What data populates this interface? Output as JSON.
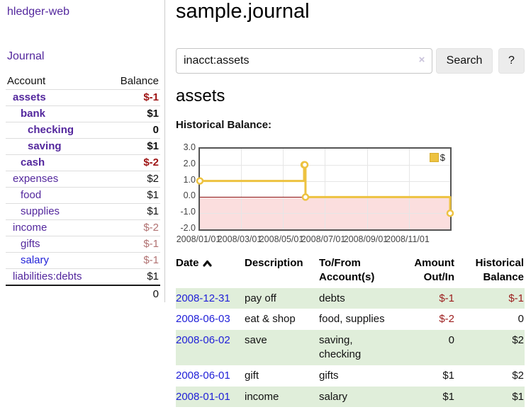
{
  "sidebar": {
    "brand": "hledger-web",
    "journal_label": "Journal",
    "accounts": {
      "col_account": "Account",
      "col_balance": "Balance",
      "rows": [
        {
          "name": "assets",
          "balance": "$-1",
          "level": 1,
          "bold": true,
          "neg": true,
          "link_color": "purple"
        },
        {
          "name": "bank",
          "balance": "$1",
          "level": 2,
          "bold": true,
          "neg": false,
          "link_color": "purple"
        },
        {
          "name": "checking",
          "balance": "0",
          "level": 3,
          "bold": true,
          "neg": false,
          "link_color": "purple"
        },
        {
          "name": "saving",
          "balance": "$1",
          "level": 3,
          "bold": true,
          "neg": false,
          "link_color": "purple"
        },
        {
          "name": "cash",
          "balance": "$-2",
          "level": 2,
          "bold": true,
          "neg": true,
          "link_color": "purple"
        },
        {
          "name": "expenses",
          "balance": "$2",
          "level": 1,
          "bold": false,
          "neg": false,
          "link_color": "purple"
        },
        {
          "name": "food",
          "balance": "$1",
          "level": 2,
          "bold": false,
          "neg": false,
          "link_color": "purple"
        },
        {
          "name": "supplies",
          "balance": "$1",
          "level": 2,
          "bold": false,
          "neg": false,
          "link_color": "purple"
        },
        {
          "name": "income",
          "balance": "$-2",
          "level": 1,
          "bold": false,
          "neg": true,
          "link_color": "purple"
        },
        {
          "name": "gifts",
          "balance": "$-1",
          "level": 2,
          "bold": false,
          "neg": true,
          "link_color": "purple"
        },
        {
          "name": "salary",
          "balance": "$-1",
          "level": 2,
          "bold": false,
          "neg": true,
          "link_color": "blue"
        },
        {
          "name": "liabilities:debts",
          "balance": "$1",
          "level": 1,
          "bold": false,
          "neg": false,
          "link_color": "purple"
        }
      ],
      "total": "0"
    }
  },
  "main": {
    "title": "sample.journal",
    "search": {
      "value": "inacct:assets",
      "clear": "×",
      "button_label": "Search",
      "help_label": "?"
    },
    "account_heading": "assets",
    "chart_label": "Historical Balance:",
    "register": {
      "headers": {
        "date": "Date",
        "description": "Description",
        "accounts": "To/From Account(s)",
        "amount": "Amount Out/In",
        "balance": "Historical Balance"
      },
      "rows": [
        {
          "date": "2008-12-31",
          "description": "pay off",
          "accounts": "debts",
          "amount": "$-1",
          "amount_neg": true,
          "balance": "$-1",
          "balance_neg": true
        },
        {
          "date": "2008-06-03",
          "description": "eat & shop",
          "accounts": "food, supplies",
          "amount": "$-2",
          "amount_neg": true,
          "balance": "0",
          "balance_neg": false
        },
        {
          "date": "2008-06-02",
          "description": "save",
          "accounts": "saving, checking",
          "amount": "0",
          "amount_neg": false,
          "balance": "$2",
          "balance_neg": false
        },
        {
          "date": "2008-06-01",
          "description": "gift",
          "accounts": "gifts",
          "amount": "$1",
          "amount_neg": false,
          "balance": "$2",
          "balance_neg": false
        },
        {
          "date": "2008-01-01",
          "description": "income",
          "accounts": "salary",
          "amount": "$1",
          "amount_neg": false,
          "balance": "$1",
          "balance_neg": false
        }
      ]
    }
  },
  "chart_data": {
    "type": "line",
    "style": "step-after",
    "title": "Historical Balance:",
    "legend": [
      {
        "label": "$",
        "color": "#edc240"
      }
    ],
    "legend_position": "top-right",
    "series": [
      {
        "name": "$",
        "points": [
          {
            "x": "2008-01-01",
            "y": 1
          },
          {
            "x": "2008-06-01",
            "y": 2
          },
          {
            "x": "2008-06-02",
            "y": 2
          },
          {
            "x": "2008-06-03",
            "y": 0
          },
          {
            "x": "2008-12-31",
            "y": -1
          }
        ]
      }
    ],
    "x_range": [
      "2008-01-01",
      "2008-12-31"
    ],
    "x_tick_labels": [
      "2008/01/01",
      "2008/03/01",
      "2008/05/01",
      "2008/07/01",
      "2008/09/01",
      "2008/11/01"
    ],
    "y_ticks": [
      3.0,
      2.0,
      1.0,
      0.0,
      -1.0,
      -2.0
    ],
    "ylim": [
      -2,
      3
    ],
    "grid": true,
    "colors": {
      "line": "#edc240",
      "marker_fill": "#ffffff",
      "negative_fill": "#fbdede",
      "zero_line": "#8f1a1a",
      "grid": "#e6e6e6",
      "border": "#545454"
    }
  }
}
